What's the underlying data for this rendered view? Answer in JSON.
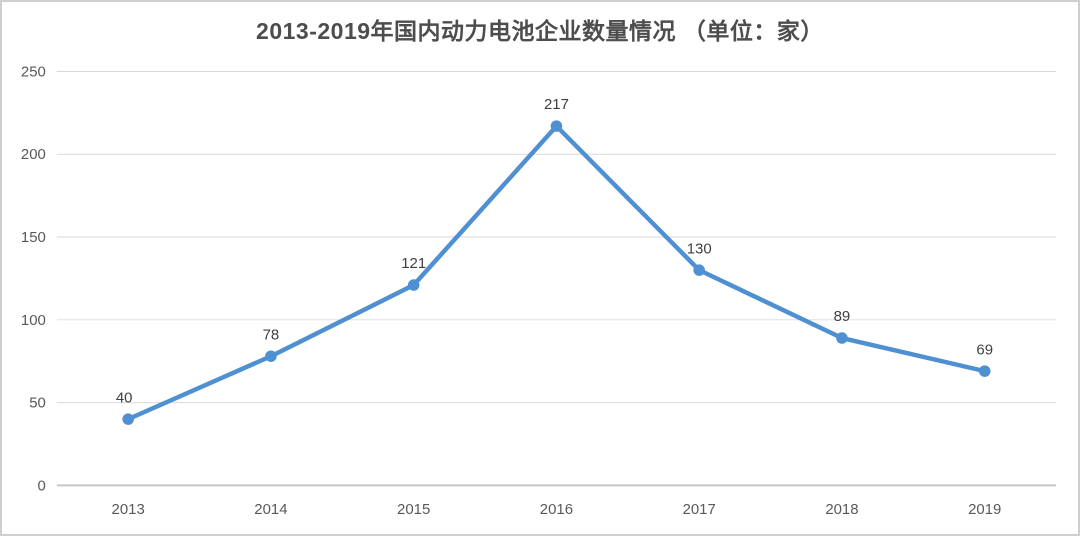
{
  "title": "2013-2019年国内动力电池企业数量情况 （单位：家）",
  "chart_data": {
    "type": "line",
    "title": "2013-2019年国内动力电池企业数量情况 （单位：家）",
    "categories": [
      "2013",
      "2014",
      "2015",
      "2016",
      "2017",
      "2018",
      "2019"
    ],
    "values": [
      40,
      78,
      121,
      217,
      130,
      89,
      69
    ],
    "xlabel": "",
    "ylabel": "",
    "ylim": [
      0,
      250
    ],
    "ytick_step": 50,
    "ytick_labels": [
      "0",
      "50",
      "100",
      "150",
      "200",
      "250"
    ],
    "grid": true,
    "legend_position": "none",
    "colors": {
      "line": "#4e90d2",
      "marker": "#4e90d2",
      "data_label": "#404040",
      "axis_tick_label": "#595959",
      "gridline": "#d9d9d9",
      "zero_axis_line": "#c6c6c6",
      "title": "#4d4d4d",
      "background": "#ffffff",
      "frame_border": "#cfcfcf"
    }
  }
}
